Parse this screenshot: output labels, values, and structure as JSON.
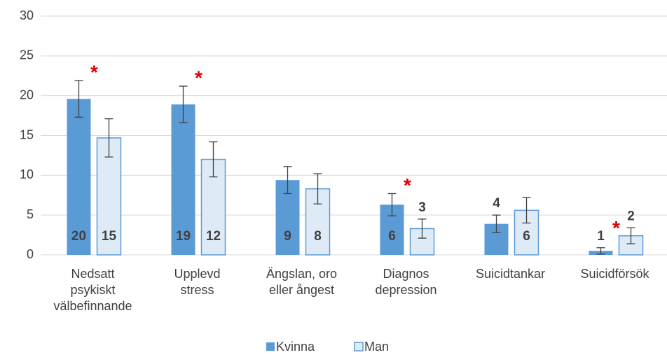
{
  "chart_data": {
    "type": "bar",
    "categories": [
      [
        "Nedsatt",
        "psykiskt",
        "välbefinnande"
      ],
      [
        "Upplevd",
        "stress"
      ],
      [
        "Ängslan, oro",
        "eller ångest"
      ],
      [
        "Diagnos",
        "depression"
      ],
      [
        "Suicidtankar"
      ],
      [
        "Suicidförsök"
      ]
    ],
    "series": [
      {
        "name": "Kvinna",
        "color": "#5b9bd5",
        "values": [
          19.6,
          18.9,
          9.4,
          6.3,
          3.9,
          0.5
        ],
        "errors": [
          2.3,
          2.3,
          1.7,
          1.4,
          1.1,
          0.4
        ],
        "value_labels": [
          "20",
          "19",
          "9",
          "6",
          "4",
          "1"
        ]
      },
      {
        "name": "Man",
        "color": "#deebf7",
        "values": [
          14.7,
          12.0,
          8.3,
          3.3,
          5.6,
          2.4
        ],
        "errors": [
          2.4,
          2.2,
          1.9,
          1.2,
          1.6,
          1.0
        ],
        "value_labels": [
          "15",
          "12",
          "8",
          "3",
          "6",
          "2"
        ]
      }
    ],
    "significance": [
      "*",
      "*",
      null,
      "*",
      null,
      "*"
    ],
    "ylim": [
      0,
      30
    ],
    "yticks": [
      0,
      5,
      10,
      15,
      20,
      25,
      30
    ],
    "grid": true,
    "legend": "bottom"
  }
}
